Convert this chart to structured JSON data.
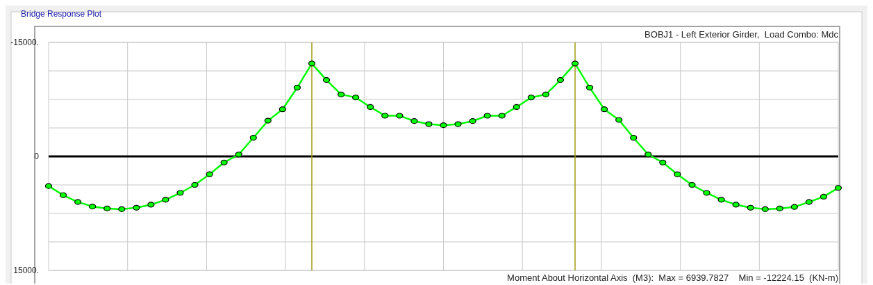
{
  "chart_data": {
    "type": "line",
    "title": "Bridge Response Plot",
    "subtitle": "BOBJ1 - Left Exterior Girder,  Load Combo: Mdc",
    "annotations": [
      "Moment About Horizontal Axis  (M3):  Max = 6939.7827    Min = -12224.15  (KN-m)"
    ],
    "categories": [
      null,
      null,
      null,
      null,
      null,
      null,
      null,
      null,
      null,
      null,
      null,
      null,
      null,
      null,
      null,
      null,
      null,
      null,
      null,
      null,
      null,
      null,
      null,
      null,
      null,
      null,
      null,
      null,
      null,
      null,
      null,
      null,
      null,
      null,
      null,
      null,
      null,
      null,
      null,
      null,
      null,
      null,
      null,
      null,
      null,
      null,
      null,
      null,
      null,
      null,
      null,
      null,
      null,
      null,
      null
    ],
    "series": [
      {
        "color": "#00ff00",
        "values": [
          3900,
          5100,
          6000,
          6600,
          6850,
          6940,
          6750,
          6350,
          5700,
          4800,
          3750,
          2350,
          800,
          -250,
          -2450,
          -4700,
          -6200,
          -9050,
          -12224,
          -10050,
          -8150,
          -7750,
          -6500,
          -5350,
          -5350,
          -4650,
          -4250,
          -4100,
          -4250,
          -4650,
          -5350,
          -5350,
          -6500,
          -7750,
          -8150,
          -10050,
          -12224,
          -9050,
          -6200,
          -4800,
          -2450,
          -250,
          800,
          2350,
          3750,
          4800,
          5700,
          6350,
          6750,
          6940,
          6850,
          6650,
          6000,
          5300,
          4150
        ]
      }
    ],
    "ylim": [
      15000,
      -15000
    ],
    "yticks": [
      {
        "value": -15000,
        "label": "-15000."
      },
      {
        "value": -11250,
        "label": null
      },
      {
        "value": -7500,
        "label": null
      },
      {
        "value": -3750,
        "label": null
      },
      {
        "value": 0,
        "label": "0"
      },
      {
        "value": 3750,
        "label": null
      },
      {
        "value": 7500,
        "label": null
      },
      {
        "value": 11250,
        "label": null
      },
      {
        "value": 15000,
        "label": "15000."
      }
    ],
    "grid": true,
    "marker": "circle",
    "line_style": "solid",
    "ref_lines": [
      {
        "axis": "y",
        "value": 0,
        "color": "#000000"
      }
    ]
  }
}
